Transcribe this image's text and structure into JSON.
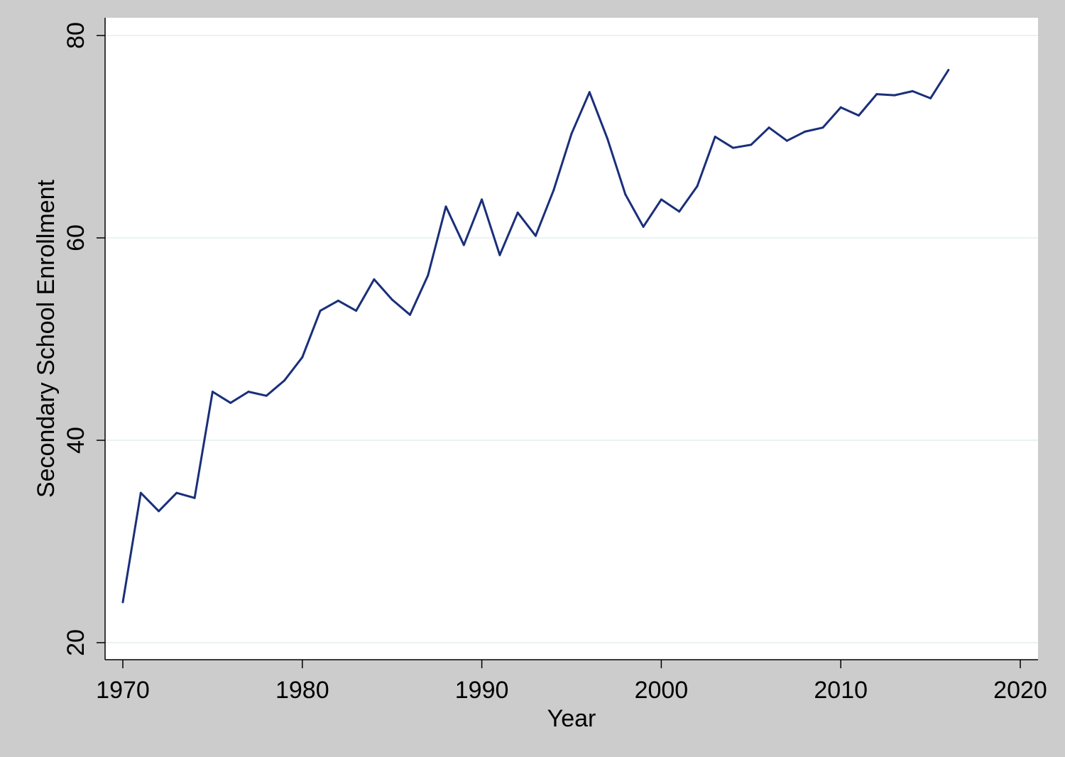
{
  "colors": {
    "background": "#cccccc",
    "plot": "#ffffff",
    "line": "#1a2f7a",
    "grid": "#eaf2f3",
    "axis": "#000000"
  },
  "chart_data": {
    "type": "line",
    "title": "",
    "xlabel": "Year",
    "ylabel": "Secondary School Enrollment",
    "xlim": [
      1970,
      2020
    ],
    "ylim": [
      20,
      80
    ],
    "xticks": [
      "1970",
      "1980",
      "1990",
      "2000",
      "2010",
      "2020"
    ],
    "yticks": [
      "20",
      "40",
      "60",
      "80"
    ],
    "grid": "horizontal",
    "legend": "none",
    "series": [
      {
        "x": [
          1970,
          1971,
          1972,
          1973,
          1974,
          1975,
          1976,
          1977,
          1978,
          1979,
          1980,
          1981,
          1982,
          1983,
          1984,
          1985,
          1986,
          1987,
          1988,
          1989,
          1990,
          1991,
          1992,
          1993,
          1994,
          1995,
          1996,
          1997,
          1998,
          1999,
          2000,
          2001,
          2002,
          2003,
          2004,
          2005,
          2006,
          2007,
          2008,
          2009,
          2010,
          2011,
          2012,
          2013,
          2014,
          2015,
          2016
        ],
        "values": [
          24.0,
          34.8,
          33.0,
          34.8,
          34.3,
          44.8,
          43.7,
          44.8,
          44.4,
          45.9,
          48.2,
          52.8,
          53.8,
          52.8,
          55.9,
          53.9,
          52.4,
          56.3,
          63.1,
          59.3,
          63.8,
          58.3,
          62.5,
          60.2,
          64.7,
          70.3,
          74.4,
          69.8,
          64.3,
          61.1,
          63.8,
          62.6,
          65.1,
          70.0,
          68.9,
          69.2,
          70.9,
          69.6,
          70.5,
          70.9,
          72.9,
          72.1,
          74.2,
          74.1,
          74.5,
          73.8,
          76.6
        ]
      }
    ]
  }
}
